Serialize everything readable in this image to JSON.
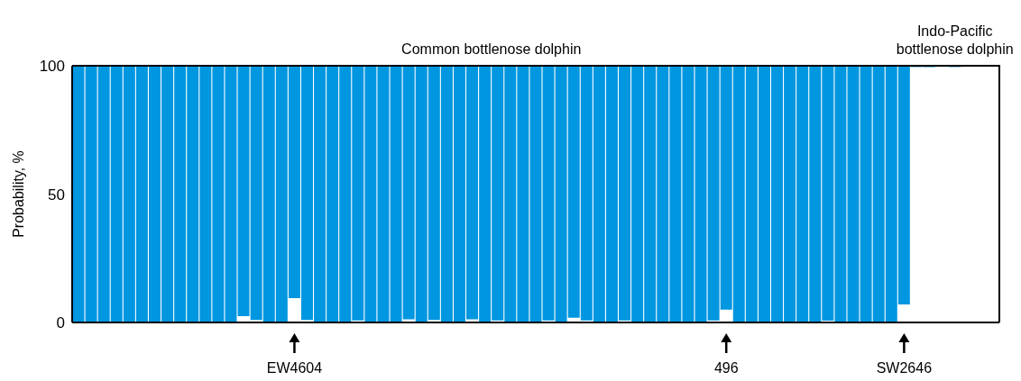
{
  "chart_data": {
    "type": "bar",
    "ylabel": "Probability, %",
    "ylim": [
      0,
      100
    ],
    "yticks": [
      0,
      50,
      100
    ],
    "grid": false,
    "legend": false,
    "annotations": [
      "Common bottlenose dolphin",
      "Indo-Pacific bottlenose dolphin"
    ],
    "categories": [
      null,
      null,
      null,
      null,
      null,
      null,
      null,
      null,
      null,
      null,
      null,
      null,
      null,
      null,
      null,
      null,
      null,
      "EW4604",
      null,
      null,
      null,
      null,
      null,
      null,
      null,
      null,
      null,
      null,
      null,
      null,
      null,
      null,
      null,
      null,
      null,
      null,
      null,
      null,
      null,
      null,
      null,
      null,
      null,
      null,
      null,
      null,
      null,
      null,
      null,
      null,
      null,
      "496",
      null,
      null,
      null,
      null,
      null,
      null,
      null,
      null,
      null,
      null,
      null,
      null,
      null,
      "SW2646",
      null,
      null,
      null,
      null,
      null,
      null,
      null
    ],
    "color": "#0096e0",
    "base": [
      0.3,
      0.3,
      0.3,
      0.3,
      0.3,
      0.3,
      0.3,
      0.3,
      0.3,
      0.3,
      0.3,
      0.3,
      0.3,
      2.5,
      1,
      0.3,
      0.3,
      9.5,
      1,
      0.3,
      0.3,
      0.3,
      0.8,
      0.3,
      0.3,
      0.3,
      1.2,
      0.3,
      1,
      0.3,
      0.3,
      1.2,
      0.3,
      0.8,
      0.3,
      0.3,
      0.3,
      0.8,
      0.3,
      1.8,
      0.8,
      0.3,
      0.3,
      0.8,
      0.3,
      0.3,
      0.3,
      0.3,
      0.3,
      0.3,
      0.8,
      5,
      0.3,
      0.3,
      0.3,
      0.3,
      0.3,
      0.3,
      0.3,
      0.7,
      0.3,
      0.3,
      0.3,
      0.3,
      0.3,
      7,
      99.5,
      99.5,
      99.6,
      99.5,
      null,
      null,
      99.8
    ],
    "values": [
      99.7,
      99.7,
      99.7,
      99.7,
      99.7,
      99.7,
      99.7,
      99.7,
      99.7,
      99.7,
      99.7,
      99.7,
      99.7,
      97.5,
      99,
      99.7,
      99.7,
      90.5,
      99,
      99.7,
      99.7,
      99.7,
      99.2,
      99.7,
      99.7,
      99.7,
      98.8,
      99.7,
      99,
      99.7,
      99.7,
      98.8,
      99.7,
      99.2,
      99.7,
      99.7,
      99.7,
      99.2,
      99.7,
      98.2,
      99.2,
      99.7,
      99.7,
      99.2,
      99.7,
      99.7,
      99.7,
      99.7,
      99.7,
      99.7,
      99.2,
      95,
      99.7,
      99.7,
      99.7,
      99.7,
      99.7,
      99.7,
      99.7,
      99.3,
      99.7,
      99.7,
      99.7,
      99.7,
      99.7,
      93,
      0.5,
      0.5,
      0.4,
      0.5,
      0,
      0,
      0.2
    ]
  }
}
